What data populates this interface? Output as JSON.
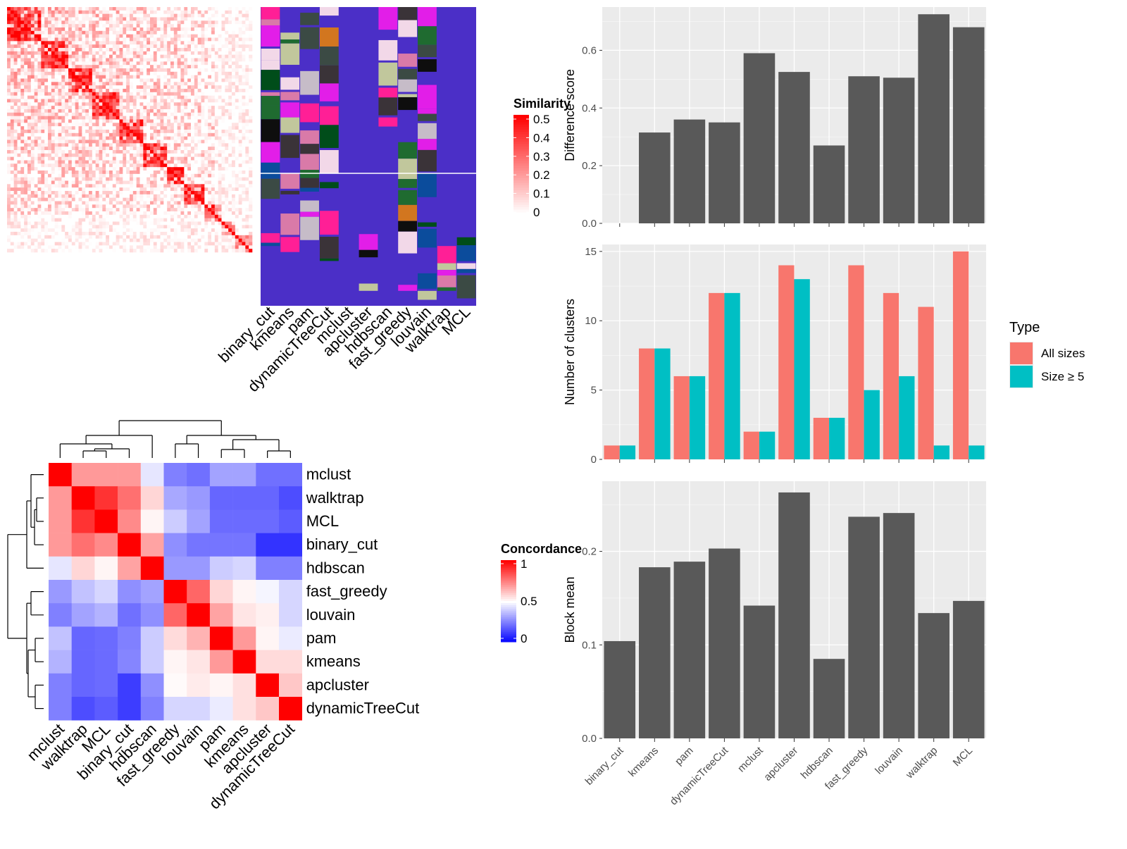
{
  "methods": [
    "binary_cut",
    "kmeans",
    "pam",
    "dynamicTreeCut",
    "mclust",
    "apcluster",
    "hdbscan",
    "fast_greedy",
    "louvain",
    "walktrap",
    "MCL"
  ],
  "concordance_order": [
    "mclust",
    "walktrap",
    "MCL",
    "binary_cut",
    "hdbscan",
    "fast_greedy",
    "louvain",
    "pam",
    "kmeans",
    "apcluster",
    "dynamicTreeCut"
  ],
  "colors": {
    "panel_bg": "#ebebeb",
    "grid": "#ffffff",
    "bar_dark": "#595959",
    "all_sizes": "#f8766d",
    "size_ge_5": "#00bfc4",
    "heat_high": "#ff0000",
    "heat_low": "#ffffff",
    "class_bg": "#4b2fc7",
    "conc_high": "#ff0000",
    "conc_mid": "#ffffff",
    "conc_low": "#0000ff"
  },
  "similarity_legend": {
    "title": "Similarity",
    "ticks": [
      "0.5",
      "0.4",
      "0.3",
      "0.2",
      "0.1",
      "0"
    ]
  },
  "concordance_legend": {
    "title": "Concordance",
    "ticks": [
      "1",
      "0.5",
      "0"
    ]
  },
  "chart_data": [
    {
      "type": "heatmap",
      "title": "",
      "legend_title": "Similarity",
      "value_range": [
        0,
        0.5
      ],
      "description_values": "similarity matrix with dense diagonal; blocks of higher similarity along diagonal"
    },
    {
      "type": "heatmap",
      "title": "",
      "categories": [
        "binary_cut",
        "kmeans",
        "pam",
        "dynamicTreeCut",
        "mclust",
        "apcluster",
        "hdbscan",
        "fast_greedy",
        "louvain",
        "walktrap",
        "MCL"
      ]
    },
    {
      "type": "heatmap",
      "title": "",
      "legend_title": "Concordance",
      "categories": [
        "mclust",
        "walktrap",
        "MCL",
        "binary_cut",
        "hdbscan",
        "fast_greedy",
        "louvain",
        "pam",
        "kmeans",
        "apcluster",
        "dynamicTreeCut"
      ],
      "matrix": [
        [
          1.0,
          0.7,
          0.7,
          0.7,
          0.45,
          0.25,
          0.22,
          0.32,
          0.32,
          0.22,
          0.22
        ],
        [
          0.7,
          1.0,
          0.9,
          0.78,
          0.58,
          0.33,
          0.3,
          0.2,
          0.2,
          0.2,
          0.15
        ],
        [
          0.7,
          0.9,
          1.0,
          0.73,
          0.52,
          0.4,
          0.32,
          0.21,
          0.21,
          0.21,
          0.18
        ],
        [
          0.7,
          0.78,
          0.73,
          1.0,
          0.68,
          0.28,
          0.23,
          0.23,
          0.23,
          0.1,
          0.1
        ],
        [
          0.45,
          0.58,
          0.52,
          0.68,
          1.0,
          0.3,
          0.3,
          0.4,
          0.42,
          0.25,
          0.25
        ],
        [
          0.3,
          0.38,
          0.42,
          0.28,
          0.32,
          1.0,
          0.8,
          0.58,
          0.52,
          0.48,
          0.42
        ],
        [
          0.25,
          0.32,
          0.35,
          0.22,
          0.28,
          0.8,
          1.0,
          0.68,
          0.55,
          0.53,
          0.42
        ],
        [
          0.38,
          0.2,
          0.21,
          0.25,
          0.4,
          0.57,
          0.65,
          1.0,
          0.7,
          0.52,
          0.46
        ],
        [
          0.35,
          0.2,
          0.21,
          0.26,
          0.4,
          0.52,
          0.55,
          0.7,
          1.0,
          0.57,
          0.57
        ],
        [
          0.25,
          0.2,
          0.21,
          0.12,
          0.28,
          0.51,
          0.54,
          0.52,
          0.56,
          1.0,
          0.61
        ],
        [
          0.25,
          0.15,
          0.18,
          0.12,
          0.25,
          0.42,
          0.42,
          0.46,
          0.56,
          0.61,
          1.0
        ]
      ]
    },
    {
      "type": "bar",
      "categories": [
        "binary_cut",
        "kmeans",
        "pam",
        "dynamicTreeCut",
        "mclust",
        "apcluster",
        "hdbscan",
        "fast_greedy",
        "louvain",
        "walktrap",
        "MCL"
      ],
      "values": [
        0.0,
        0.315,
        0.36,
        0.35,
        0.59,
        0.525,
        0.27,
        0.51,
        0.505,
        0.725,
        0.68
      ],
      "title": "",
      "xlabel": "",
      "ylabel": "Difference score",
      "ylim": [
        0,
        0.75
      ],
      "yticks": [
        0.0,
        0.2,
        0.4,
        0.6
      ],
      "yticklabels": [
        "0.0",
        "0.2",
        "0.4",
        "0.6"
      ],
      "grid": true
    },
    {
      "type": "bar",
      "categories": [
        "binary_cut",
        "kmeans",
        "pam",
        "dynamicTreeCut",
        "mclust",
        "apcluster",
        "hdbscan",
        "fast_greedy",
        "louvain",
        "walktrap",
        "MCL"
      ],
      "series": [
        {
          "name": "All sizes",
          "values": [
            1,
            8,
            6,
            12,
            2,
            14,
            3,
            14,
            12,
            11,
            15
          ]
        },
        {
          "name": "Size ≥ 5",
          "values": [
            1,
            8,
            6,
            12,
            2,
            13,
            3,
            5,
            6,
            1,
            1
          ]
        }
      ],
      "title": "",
      "xlabel": "",
      "ylabel": "Number of clusters",
      "ylim": [
        0,
        15.5
      ],
      "yticks": [
        0,
        5,
        10,
        15
      ],
      "yticklabels": [
        "0",
        "5",
        "10",
        "15"
      ],
      "grid": true,
      "legend": {
        "title": "Type",
        "position": "right"
      }
    },
    {
      "type": "bar",
      "categories": [
        "binary_cut",
        "kmeans",
        "pam",
        "dynamicTreeCut",
        "mclust",
        "apcluster",
        "hdbscan",
        "fast_greedy",
        "louvain",
        "walktrap",
        "MCL"
      ],
      "values": [
        0.104,
        0.183,
        0.189,
        0.203,
        0.142,
        0.263,
        0.085,
        0.237,
        0.241,
        0.134,
        0.147
      ],
      "title": "",
      "xlabel": "",
      "ylabel": "Block mean",
      "ylim": [
        0,
        0.275
      ],
      "yticks": [
        0.0,
        0.1,
        0.2
      ],
      "yticklabels": [
        "0.0",
        "0.1",
        "0.2"
      ],
      "grid": true
    }
  ]
}
